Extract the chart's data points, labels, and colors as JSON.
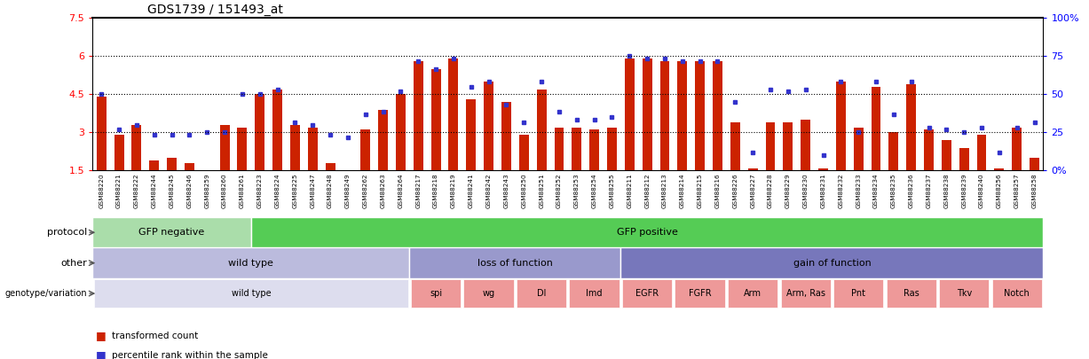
{
  "title": "GDS1739 / 151493_at",
  "samples": [
    "GSM88220",
    "GSM88221",
    "GSM88222",
    "GSM88244",
    "GSM88245",
    "GSM88246",
    "GSM88259",
    "GSM88260",
    "GSM88261",
    "GSM88223",
    "GSM88224",
    "GSM88225",
    "GSM88247",
    "GSM88248",
    "GSM88249",
    "GSM88262",
    "GSM88263",
    "GSM88264",
    "GSM88217",
    "GSM88218",
    "GSM88219",
    "GSM88241",
    "GSM88242",
    "GSM88243",
    "GSM88250",
    "GSM88251",
    "GSM88252",
    "GSM88253",
    "GSM88254",
    "GSM88255",
    "GSM88211",
    "GSM88212",
    "GSM88213",
    "GSM88214",
    "GSM88215",
    "GSM88216",
    "GSM88226",
    "GSM88227",
    "GSM88228",
    "GSM88229",
    "GSM88230",
    "GSM88231",
    "GSM88232",
    "GSM88233",
    "GSM88234",
    "GSM88235",
    "GSM88236",
    "GSM88237",
    "GSM88238",
    "GSM88239",
    "GSM88240",
    "GSM88256",
    "GSM88257",
    "GSM88258"
  ],
  "bar_values": [
    4.4,
    2.9,
    3.3,
    1.9,
    2.0,
    1.8,
    1.5,
    3.3,
    3.2,
    4.5,
    4.7,
    3.3,
    3.2,
    1.8,
    1.3,
    3.1,
    3.9,
    4.5,
    5.8,
    5.5,
    5.9,
    4.3,
    5.0,
    4.2,
    2.9,
    4.7,
    3.2,
    3.2,
    3.1,
    3.2,
    5.9,
    5.9,
    5.8,
    5.8,
    5.8,
    5.8,
    3.4,
    1.6,
    3.4,
    3.4,
    3.5,
    1.6,
    5.0,
    3.2,
    4.8,
    3.0,
    4.9,
    3.1,
    2.7,
    2.4,
    2.9,
    1.6,
    3.2,
    2.0
  ],
  "dot_values": [
    4.5,
    3.1,
    3.3,
    2.9,
    2.9,
    2.9,
    3.0,
    3.0,
    4.5,
    4.5,
    4.7,
    3.4,
    3.3,
    2.9,
    2.8,
    3.7,
    3.8,
    4.6,
    5.8,
    5.5,
    5.9,
    4.8,
    5.0,
    4.1,
    3.4,
    5.0,
    3.8,
    3.5,
    3.5,
    3.6,
    6.0,
    5.9,
    5.9,
    5.8,
    5.8,
    5.8,
    4.2,
    2.2,
    4.7,
    4.6,
    4.7,
    2.1,
    5.0,
    3.0,
    5.0,
    3.7,
    5.0,
    3.2,
    3.1,
    3.0,
    3.2,
    2.2,
    3.2,
    3.4
  ],
  "ylim": [
    1.5,
    7.5
  ],
  "yticks": [
    1.5,
    3.0,
    4.5,
    6.0,
    7.5
  ],
  "ytick_labels": [
    "1.5",
    "3",
    "4.5",
    "6",
    "7.5"
  ],
  "right_yticks": [
    0,
    25,
    50,
    75,
    100
  ],
  "right_ytick_labels": [
    "0%",
    "25",
    "50",
    "75",
    "100%"
  ],
  "bar_color": "#cc2200",
  "dot_color": "#3333cc",
  "hline_values": [
    3.0,
    4.5,
    6.0
  ],
  "protocol_groups": [
    {
      "label": "GFP negative",
      "start": 0,
      "end": 9,
      "color": "#aaddaa"
    },
    {
      "label": "GFP positive",
      "start": 9,
      "end": 54,
      "color": "#55cc55"
    }
  ],
  "other_groups": [
    {
      "label": "wild type",
      "start": 0,
      "end": 18,
      "color": "#bbbbdd"
    },
    {
      "label": "loss of function",
      "start": 18,
      "end": 30,
      "color": "#9999cc"
    },
    {
      "label": "gain of function",
      "start": 30,
      "end": 54,
      "color": "#7777bb"
    }
  ],
  "genotype_groups": [
    {
      "label": "wild type",
      "start": 0,
      "end": 18,
      "color": "#ddddee"
    },
    {
      "label": "spi",
      "start": 18,
      "end": 21,
      "color": "#ee9999"
    },
    {
      "label": "wg",
      "start": 21,
      "end": 24,
      "color": "#ee9999"
    },
    {
      "label": "Dl",
      "start": 24,
      "end": 27,
      "color": "#ee9999"
    },
    {
      "label": "Imd",
      "start": 27,
      "end": 30,
      "color": "#ee9999"
    },
    {
      "label": "EGFR",
      "start": 30,
      "end": 33,
      "color": "#ee9999"
    },
    {
      "label": "FGFR",
      "start": 33,
      "end": 36,
      "color": "#ee9999"
    },
    {
      "label": "Arm",
      "start": 36,
      "end": 39,
      "color": "#ee9999"
    },
    {
      "label": "Arm, Ras",
      "start": 39,
      "end": 42,
      "color": "#ee9999"
    },
    {
      "label": "Pnt",
      "start": 42,
      "end": 45,
      "color": "#ee9999"
    },
    {
      "label": "Ras",
      "start": 45,
      "end": 48,
      "color": "#ee9999"
    },
    {
      "label": "Tkv",
      "start": 48,
      "end": 51,
      "color": "#ee9999"
    },
    {
      "label": "Notch",
      "start": 51,
      "end": 54,
      "color": "#ee9999"
    }
  ],
  "row_labels": [
    "protocol",
    "other",
    "genotype/variation"
  ],
  "legend_items": [
    {
      "color": "#cc2200",
      "label": "transformed count"
    },
    {
      "color": "#3333cc",
      "label": "percentile rank within the sample"
    }
  ]
}
